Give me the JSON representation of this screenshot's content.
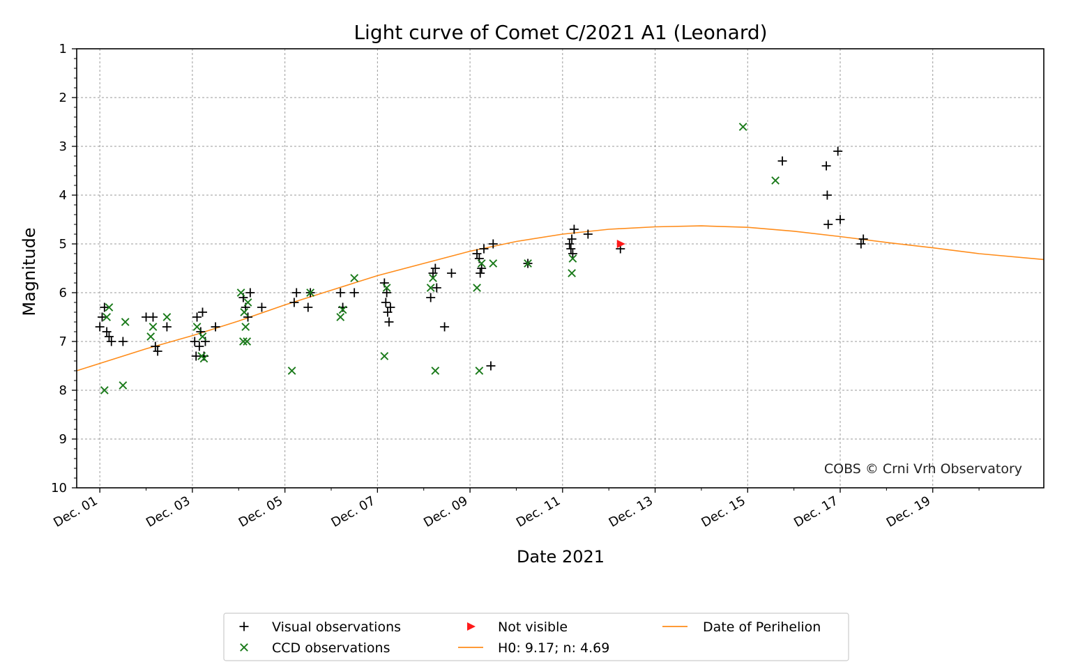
{
  "chart_data": {
    "type": "scatter",
    "title": "Light curve of Comet C/2021 A1 (Leonard)",
    "xlabel": "Date 2021",
    "ylabel": "Magnitude",
    "credit": "COBS © Crni Vrh Observatory",
    "x_unit": "day of December 2021",
    "xlim": [
      0.5,
      21.4
    ],
    "ylim": [
      10,
      1
    ],
    "y_inverted": true,
    "grid": true,
    "x_ticks": [
      {
        "value": 1,
        "label": "Dec. 01"
      },
      {
        "value": 3,
        "label": "Dec. 03"
      },
      {
        "value": 5,
        "label": "Dec. 05"
      },
      {
        "value": 7,
        "label": "Dec. 07"
      },
      {
        "value": 9,
        "label": "Dec. 09"
      },
      {
        "value": 11,
        "label": "Dec. 11"
      },
      {
        "value": 13,
        "label": "Dec. 13"
      },
      {
        "value": 15,
        "label": "Dec. 15"
      },
      {
        "value": 17,
        "label": "Dec. 17"
      },
      {
        "value": 19,
        "label": "Dec. 19"
      }
    ],
    "y_ticks": [
      1,
      2,
      3,
      4,
      5,
      6,
      7,
      8,
      9,
      10
    ],
    "series": [
      {
        "name": "Visual observations",
        "marker": "plus",
        "color": "#000000",
        "points": [
          [
            1.0,
            6.7
          ],
          [
            1.05,
            6.5
          ],
          [
            1.1,
            6.3
          ],
          [
            1.15,
            6.8
          ],
          [
            1.2,
            6.9
          ],
          [
            1.25,
            7.0
          ],
          [
            1.5,
            7.0
          ],
          [
            2.0,
            6.5
          ],
          [
            2.15,
            6.5
          ],
          [
            2.2,
            7.1
          ],
          [
            2.25,
            7.2
          ],
          [
            2.45,
            6.7
          ],
          [
            3.05,
            7.0
          ],
          [
            3.08,
            7.3
          ],
          [
            3.1,
            6.5
          ],
          [
            3.15,
            7.1
          ],
          [
            3.18,
            6.8
          ],
          [
            3.22,
            6.4
          ],
          [
            3.25,
            7.3
          ],
          [
            3.28,
            7.0
          ],
          [
            3.5,
            6.7
          ],
          [
            4.1,
            6.1
          ],
          [
            4.15,
            6.3
          ],
          [
            4.2,
            6.5
          ],
          [
            4.25,
            6.0
          ],
          [
            4.5,
            6.3
          ],
          [
            5.2,
            6.2
          ],
          [
            5.25,
            6.0
          ],
          [
            5.5,
            6.3
          ],
          [
            5.55,
            6.0
          ],
          [
            6.2,
            6.0
          ],
          [
            6.25,
            6.3
          ],
          [
            6.5,
            6.0
          ],
          [
            7.15,
            5.8
          ],
          [
            7.18,
            6.2
          ],
          [
            7.2,
            6.0
          ],
          [
            7.22,
            6.4
          ],
          [
            7.25,
            6.6
          ],
          [
            7.28,
            6.3
          ],
          [
            8.15,
            6.1
          ],
          [
            8.2,
            5.6
          ],
          [
            8.25,
            5.5
          ],
          [
            8.28,
            5.9
          ],
          [
            8.45,
            6.7
          ],
          [
            8.6,
            5.6
          ],
          [
            9.15,
            5.2
          ],
          [
            9.2,
            5.3
          ],
          [
            9.22,
            5.6
          ],
          [
            9.25,
            5.5
          ],
          [
            9.3,
            5.1
          ],
          [
            9.45,
            7.5
          ],
          [
            9.5,
            5.0
          ],
          [
            10.25,
            5.4
          ],
          [
            11.15,
            5.0
          ],
          [
            11.18,
            5.1
          ],
          [
            11.2,
            4.9
          ],
          [
            11.22,
            5.2
          ],
          [
            11.25,
            4.7
          ],
          [
            11.55,
            4.8
          ],
          [
            12.25,
            5.1
          ],
          [
            15.75,
            3.3
          ],
          [
            16.7,
            3.4
          ],
          [
            16.72,
            4.0
          ],
          [
            16.74,
            4.6
          ],
          [
            16.95,
            3.1
          ],
          [
            17.0,
            4.5
          ],
          [
            17.45,
            5.0
          ],
          [
            17.5,
            4.9
          ]
        ]
      },
      {
        "name": "CCD observations",
        "marker": "x",
        "color": "#1a7a1a",
        "points": [
          [
            1.1,
            8.0
          ],
          [
            1.15,
            6.5
          ],
          [
            1.2,
            6.3
          ],
          [
            1.5,
            7.9
          ],
          [
            1.55,
            6.6
          ],
          [
            2.1,
            6.9
          ],
          [
            2.15,
            6.7
          ],
          [
            2.45,
            6.5
          ],
          [
            3.1,
            6.7
          ],
          [
            3.2,
            7.3
          ],
          [
            3.22,
            6.9
          ],
          [
            3.25,
            7.35
          ],
          [
            4.05,
            6.0
          ],
          [
            4.1,
            7.0
          ],
          [
            4.12,
            6.4
          ],
          [
            4.15,
            6.7
          ],
          [
            4.18,
            7.0
          ],
          [
            4.2,
            6.2
          ],
          [
            5.15,
            7.6
          ],
          [
            5.55,
            6.0
          ],
          [
            6.2,
            6.5
          ],
          [
            6.25,
            6.35
          ],
          [
            6.5,
            5.7
          ],
          [
            7.15,
            7.3
          ],
          [
            7.2,
            5.9
          ],
          [
            8.15,
            5.9
          ],
          [
            8.2,
            5.7
          ],
          [
            8.25,
            7.6
          ],
          [
            9.15,
            5.9
          ],
          [
            9.2,
            7.6
          ],
          [
            9.25,
            5.4
          ],
          [
            9.5,
            5.4
          ],
          [
            10.25,
            5.4
          ],
          [
            11.2,
            5.6
          ],
          [
            11.22,
            5.3
          ],
          [
            14.9,
            2.6
          ],
          [
            15.6,
            3.7
          ]
        ]
      },
      {
        "name": "Not visible",
        "marker": "triangle-right",
        "color": "#ff1a1a",
        "points": [
          [
            12.25,
            5.0
          ]
        ]
      }
    ],
    "model_curve": {
      "name": "H0: 9.17; n: 4.69",
      "color": "#ff8c1a",
      "points": [
        [
          0.5,
          7.6
        ],
        [
          1,
          7.45
        ],
        [
          2,
          7.15
        ],
        [
          3,
          6.88
        ],
        [
          4,
          6.58
        ],
        [
          5,
          6.25
        ],
        [
          6,
          5.95
        ],
        [
          7,
          5.65
        ],
        [
          8,
          5.4
        ],
        [
          9,
          5.15
        ],
        [
          10,
          4.95
        ],
        [
          11,
          4.8
        ],
        [
          12,
          4.7
        ],
        [
          13,
          4.65
        ],
        [
          14,
          4.63
        ],
        [
          15,
          4.66
        ],
        [
          16,
          4.74
        ],
        [
          17,
          4.85
        ],
        [
          18,
          4.97
        ],
        [
          19,
          5.08
        ],
        [
          20,
          5.2
        ],
        [
          21.4,
          5.32
        ]
      ]
    },
    "legend": {
      "placement": "bottom-center",
      "entries": [
        {
          "label": "Visual observations",
          "marker": "plus",
          "color": "#000000"
        },
        {
          "label": "Not visible",
          "marker": "triangle-right",
          "color": "#ff1a1a"
        },
        {
          "label": "Date of Perihelion",
          "marker": "line",
          "color": "#ff8c1a"
        },
        {
          "label": "CCD observations",
          "marker": "x",
          "color": "#1a7a1a"
        },
        {
          "label": "H0: 9.17; n: 4.69",
          "marker": "line",
          "color": "#ff8c1a"
        }
      ]
    }
  }
}
